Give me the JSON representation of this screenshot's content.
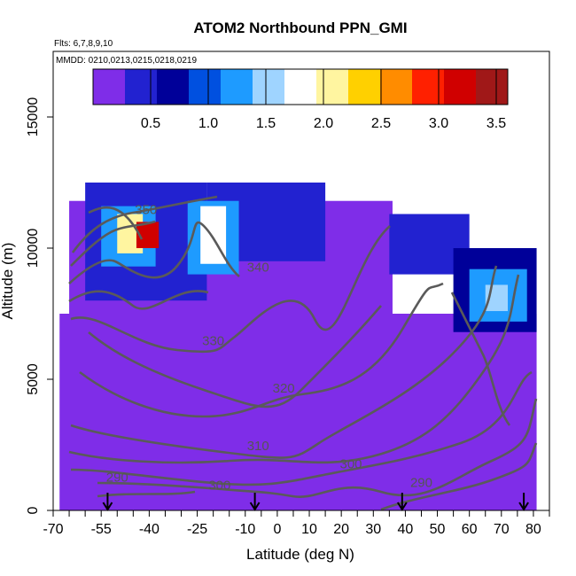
{
  "chart_data": {
    "type": "heatmap",
    "title": "ATOM2 Northbound PPN_GMI",
    "flights_label": "Flts: 6,7,8,9,10",
    "dates_label": "MMDD: 0210,0213,0215,0218,0219",
    "xlabel": "Latitude (deg N)",
    "ylabel": "Altitude (m)",
    "xlim": [
      -70,
      85
    ],
    "ylim": [
      0,
      17500
    ],
    "x_ticks_major": [
      -70,
      -55,
      -40,
      -25,
      -10,
      0,
      10,
      20,
      30,
      40,
      50,
      60,
      70,
      80
    ],
    "x_ticks_minor_step": 5,
    "y_ticks": [
      0,
      5000,
      10000,
      15000
    ],
    "colorbar": {
      "min": 0,
      "max": 3.6,
      "ticks": [
        0.5,
        1.0,
        1.5,
        2.0,
        2.5,
        3.0,
        3.5
      ],
      "tick_labels": [
        "0.5",
        "1.0",
        "1.5",
        "2.0",
        "2.5",
        "3.0",
        "3.5"
      ],
      "colors": [
        "#7f2de8",
        "#2222d0",
        "#000099",
        "#0050e0",
        "#1e9bff",
        "#9fd4ff",
        "#ffffff",
        "#fff5a0",
        "#ffd000",
        "#ff8c00",
        "#ff2000",
        "#d00000",
        "#a01818"
      ]
    },
    "background_value_color": "#7f2de8",
    "contour_labels": [
      {
        "text": "350",
        "lat": -41,
        "alt": 11300
      },
      {
        "text": "340",
        "lat": -6,
        "alt": 9100
      },
      {
        "text": "330",
        "lat": -20,
        "alt": 6300
      },
      {
        "text": "320",
        "lat": 2,
        "alt": 4500
      },
      {
        "text": "310",
        "lat": -6,
        "alt": 2300
      },
      {
        "text": "300",
        "lat": -18,
        "alt": 800
      },
      {
        "text": "300",
        "lat": 23,
        "alt": 1600
      },
      {
        "text": "290",
        "lat": -50,
        "alt": 1100
      },
      {
        "text": "290",
        "lat": 45,
        "alt": 900
      }
    ],
    "flight_arrows_lat": [
      -53,
      -7,
      39,
      77
    ],
    "data_regions": [
      {
        "lat": [
          -68,
          81
        ],
        "alt": [
          0,
          7500
        ],
        "value": 0.05
      },
      {
        "lat": [
          -65,
          36
        ],
        "alt": [
          7500,
          11800
        ],
        "value": 0.1
      },
      {
        "lat": [
          -60,
          -22
        ],
        "alt": [
          8000,
          12500
        ],
        "value": 0.45
      },
      {
        "lat": [
          -22,
          15
        ],
        "alt": [
          9500,
          12500
        ],
        "value": 0.4
      },
      {
        "lat": [
          -55,
          -38
        ],
        "alt": [
          9300,
          11600
        ],
        "value": 1.3
      },
      {
        "lat": [
          -50,
          -42
        ],
        "alt": [
          9800,
          11300
        ],
        "value": 2.1
      },
      {
        "lat": [
          -44,
          -37
        ],
        "alt": [
          10000,
          11000
        ],
        "value": 3.2
      },
      {
        "lat": [
          -28,
          -12
        ],
        "alt": [
          9000,
          11800
        ],
        "value": 1.2
      },
      {
        "lat": [
          -24,
          -16
        ],
        "alt": [
          9400,
          11600
        ],
        "value": 1.8
      },
      {
        "lat": [
          35,
          60
        ],
        "alt": [
          9000,
          11300
        ],
        "value": 0.5
      },
      {
        "lat": [
          55,
          81
        ],
        "alt": [
          6800,
          10000
        ],
        "value": 0.6
      },
      {
        "lat": [
          60,
          78
        ],
        "alt": [
          7200,
          9200
        ],
        "value": 1.3
      },
      {
        "lat": [
          65,
          72
        ],
        "alt": [
          7600,
          8600
        ],
        "value": 1.6
      }
    ]
  }
}
